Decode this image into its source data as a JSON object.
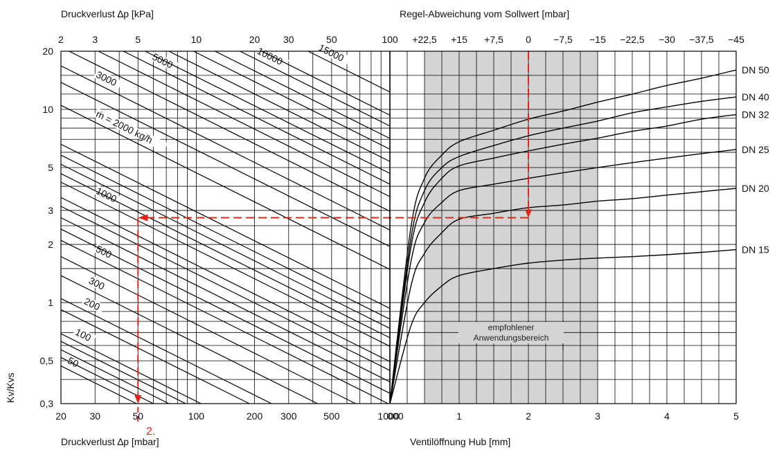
{
  "chart_data": {
    "type": "line",
    "left_panel": {
      "top_axis_title": "Druckverlust ∆p [kPa]",
      "bottom_axis_title": "Druckverlust ∆p [mbar]",
      "y_axis_title": "Kv/Kvs",
      "x_scale": "log",
      "y_scale": "log",
      "xlim_mbar": [
        20,
        1000
      ],
      "ylim": [
        0.3,
        20
      ],
      "top_ticks": [
        "2",
        "3",
        "5",
        "10",
        "20",
        "30",
        "50",
        "100"
      ],
      "bottom_ticks": [
        "20",
        "30",
        "50",
        "100",
        "200",
        "300",
        "500",
        "1000"
      ],
      "y_ticks": [
        "0,3",
        "0,5",
        "1",
        "2",
        "3",
        "5",
        "10",
        "20"
      ],
      "flow_label_prefix": "ṁ = ",
      "flow_label_suffix": " kg/h",
      "flow_lines": [
        {
          "label": "50",
          "y_at_20mbar": 0.47
        },
        {
          "label": "",
          "y_at_20mbar": 0.52
        },
        {
          "label": "",
          "y_at_20mbar": 0.57
        },
        {
          "label": "",
          "y_at_20mbar": 0.63
        },
        {
          "label": "100",
          "y_at_20mbar": 0.69
        },
        {
          "label": "",
          "y_at_20mbar": 0.92
        },
        {
          "label": "200",
          "y_at_20mbar": 1.05
        },
        {
          "label": "300",
          "y_at_20mbar": 1.38
        },
        {
          "label": "",
          "y_at_20mbar": 1.73
        },
        {
          "label": "500",
          "y_at_20mbar": 2.1
        },
        {
          "label": "",
          "y_at_20mbar": 2.4
        },
        {
          "label": "",
          "y_at_20mbar": 2.75
        },
        {
          "label": "",
          "y_at_20mbar": 3.15
        },
        {
          "label": "",
          "y_at_20mbar": 3.5
        },
        {
          "label": "1000",
          "y_at_20mbar": 4.2
        },
        {
          "label": "",
          "y_at_20mbar": 4.65
        },
        {
          "label": "",
          "y_at_20mbar": 5.2
        },
        {
          "label": "",
          "y_at_20mbar": 5.8
        },
        {
          "label": "",
          "y_at_20mbar": 6.6
        },
        {
          "label": "2000",
          "y_at_20mbar": 10.5
        },
        {
          "label": "",
          "y_at_20mbar": 13.8
        },
        {
          "label": "3000",
          "y_at_20mbar": 16.8
        },
        {
          "label": "",
          "y_at_20mbar": 21
        },
        {
          "label": "",
          "y_at_20mbar": 25
        },
        {
          "label": "5000",
          "y_at_20mbar": 29
        },
        {
          "label": "",
          "y_at_20mbar": 33
        },
        {
          "label": "",
          "y_at_20mbar": 38
        },
        {
          "label": "",
          "y_at_20mbar": 44
        },
        {
          "label": "",
          "y_at_20mbar": 50
        },
        {
          "label": "10000",
          "y_at_20mbar": 58
        },
        {
          "label": "",
          "y_at_20mbar": 66
        },
        {
          "label": "15000",
          "y_at_20mbar": 87
        }
      ]
    },
    "right_panel": {
      "top_axis_title": "Regel-Abweichung vom Sollwert [mbar]",
      "bottom_axis_title": "Ventilöffnung Hub [mm]",
      "x_scale": "linear",
      "xlim_mm": [
        0,
        5
      ],
      "top_ticks": [
        "100",
        "+22,5",
        "+15",
        "+7,5",
        "0",
        "−7,5",
        "−15",
        "−22,5",
        "−30",
        "−37,5",
        "−45"
      ],
      "bottom_ticks": [
        "000",
        "1",
        "2",
        "3",
        "4",
        "5"
      ],
      "recommended_range_mm": [
        0.5,
        3
      ],
      "recommended_range_label": [
        "empfohlener",
        "Anwendungsbereich"
      ],
      "series": [
        {
          "name": "DN 50",
          "points": [
            [
              0,
              0.3
            ],
            [
              0.3,
              2.4
            ],
            [
              0.5,
              4.4
            ],
            [
              0.75,
              5.8
            ],
            [
              1,
              6.8
            ],
            [
              1.5,
              7.8
            ],
            [
              2,
              8.9
            ],
            [
              2.5,
              9.8
            ],
            [
              3,
              10.9
            ],
            [
              3.5,
              12
            ],
            [
              4,
              13.3
            ],
            [
              4.5,
              14.5
            ],
            [
              5,
              16
            ]
          ]
        },
        {
          "name": "DN 40",
          "points": [
            [
              0,
              0.3
            ],
            [
              0.3,
              2.1
            ],
            [
              0.5,
              3.8
            ],
            [
              0.75,
              5
            ],
            [
              1,
              5.7
            ],
            [
              1.5,
              6.5
            ],
            [
              2,
              7.3
            ],
            [
              2.5,
              8
            ],
            [
              3,
              8.7
            ],
            [
              3.5,
              9.6
            ],
            [
              4,
              10.3
            ],
            [
              4.5,
              11
            ],
            [
              5,
              11.6
            ]
          ]
        },
        {
          "name": "DN 32",
          "points": [
            [
              0,
              0.3
            ],
            [
              0.3,
              1.9
            ],
            [
              0.5,
              3.3
            ],
            [
              0.75,
              4.4
            ],
            [
              1,
              5.1
            ],
            [
              1.5,
              5.6
            ],
            [
              2,
              6.1
            ],
            [
              2.5,
              6.6
            ],
            [
              3,
              7.1
            ],
            [
              3.5,
              7.7
            ],
            [
              4,
              8.2
            ],
            [
              4.5,
              8.9
            ],
            [
              5,
              9.4
            ]
          ]
        },
        {
          "name": "DN 25",
          "points": [
            [
              0,
              0.3
            ],
            [
              0.3,
              1.6
            ],
            [
              0.5,
              2.6
            ],
            [
              0.75,
              3.3
            ],
            [
              1,
              3.8
            ],
            [
              1.5,
              4.1
            ],
            [
              2,
              4.4
            ],
            [
              2.5,
              4.7
            ],
            [
              3,
              5
            ],
            [
              3.5,
              5.3
            ],
            [
              4,
              5.6
            ],
            [
              4.5,
              5.9
            ],
            [
              5,
              6.2
            ]
          ]
        },
        {
          "name": "DN 20",
          "points": [
            [
              0,
              0.3
            ],
            [
              0.3,
              1.2
            ],
            [
              0.5,
              1.8
            ],
            [
              0.75,
              2.3
            ],
            [
              1,
              2.7
            ],
            [
              1.5,
              2.9
            ],
            [
              2,
              3.1
            ],
            [
              2.5,
              3.2
            ],
            [
              3,
              3.35
            ],
            [
              3.5,
              3.45
            ],
            [
              4,
              3.6
            ],
            [
              4.5,
              3.75
            ],
            [
              5,
              3.9
            ]
          ]
        },
        {
          "name": "DN 15",
          "points": [
            [
              0,
              0.3
            ],
            [
              0.3,
              0.75
            ],
            [
              0.5,
              1.0
            ],
            [
              0.75,
              1.22
            ],
            [
              1,
              1.38
            ],
            [
              1.5,
              1.5
            ],
            [
              2,
              1.6
            ],
            [
              2.5,
              1.66
            ],
            [
              3,
              1.7
            ],
            [
              3.5,
              1.73
            ],
            [
              4,
              1.77
            ],
            [
              4.5,
              1.82
            ],
            [
              5,
              1.88
            ]
          ]
        }
      ]
    },
    "example_path": {
      "color": "#e2231a",
      "deviation_mbar": "0",
      "hub_mm": 2,
      "kv_kvs": 2.75,
      "dp_mbar": 50,
      "step_label": "2."
    }
  }
}
